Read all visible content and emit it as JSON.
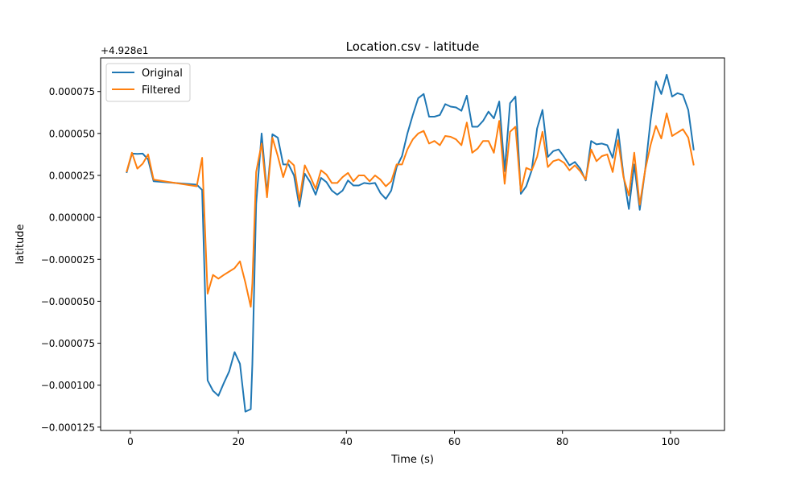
{
  "chart_data": {
    "type": "line",
    "title": "Location.csv - latitude",
    "xlabel": "Time (s)",
    "ylabel": "latitude",
    "offset_label": "+4.928e1",
    "xlim": [
      -5.5,
      110
    ],
    "ylim": [
      -0.000127,
      9.5e-05
    ],
    "xticks": [
      0,
      20,
      40,
      60,
      80,
      100
    ],
    "xtick_labels": [
      "0",
      "20",
      "40",
      "60",
      "80",
      "100"
    ],
    "yticks": [
      7.5e-05,
      5e-05,
      2.5e-05,
      0,
      -2.5e-05,
      -5e-05,
      -7.5e-05,
      -0.0001,
      -0.000125
    ],
    "ytick_labels": [
      "0.000075",
      "0.000050",
      "0.000025",
      "0.000000",
      "−0.000025",
      "−0.000050",
      "−0.000075",
      "−0.000100",
      "−0.000125"
    ],
    "grid": false,
    "legend_position": "upper-left",
    "series": [
      {
        "name": "Original",
        "color": "#1f77b4",
        "x": [
          -0.7,
          0.3,
          1.3,
          2.3,
          3.3,
          4.3,
          12.3,
          13.3,
          14.3,
          15.3,
          16.3,
          17.3,
          18.3,
          19.3,
          20.3,
          21.3,
          22.3,
          22.6,
          23.3,
          24.3,
          25.3,
          26.3,
          27.3,
          28.3,
          29.3,
          30.3,
          31.3,
          32.3,
          33.3,
          34.3,
          35.3,
          36.3,
          37.3,
          38.3,
          39.3,
          40.3,
          41.3,
          42.3,
          43.3,
          44.3,
          45.3,
          46.3,
          47.3,
          48.3,
          49.3,
          50.3,
          51.3,
          52.3,
          53.3,
          54.3,
          55.3,
          56.3,
          57.3,
          58.3,
          59.3,
          60.3,
          61.3,
          62.3,
          63.3,
          64.3,
          65.3,
          66.3,
          67.3,
          68.3,
          69.3,
          70.3,
          71.3,
          72.3,
          73.3,
          74.3,
          75.3,
          76.3,
          77.3,
          78.3,
          79.3,
          80.3,
          81.3,
          82.3,
          83.3,
          84.3,
          85.3,
          86.3,
          87.3,
          88.3,
          89.3,
          90.3,
          91.3,
          92.3,
          93.3,
          94.3,
          95.3,
          96.3,
          97.3,
          98.3,
          99.3,
          100.3,
          101.3,
          102.3,
          103.3,
          104.3
        ],
        "y": [
          2.65e-05,
          3.8e-05,
          3.78e-05,
          3.8e-05,
          3.45e-05,
          2.15e-05,
          1.95e-05,
          1.63e-05,
          -9.72e-05,
          -0.0001033,
          -0.0001063,
          -9.88e-05,
          -9.18e-05,
          -8.03e-05,
          -8.73e-05,
          -0.0001158,
          -0.0001143,
          -8.73e-05,
          8e-06,
          5e-05,
          1.4e-05,
          4.95e-05,
          4.75e-05,
          3.15e-05,
          3.15e-05,
          2.5e-05,
          6.5e-06,
          2.6e-05,
          2.1e-05,
          1.35e-05,
          2.35e-05,
          2.1e-05,
          1.6e-05,
          1.35e-05,
          1.6e-05,
          2.2e-05,
          1.9e-05,
          1.9e-05,
          2.05e-05,
          2e-05,
          2.05e-05,
          1.45e-05,
          1.1e-05,
          1.6e-05,
          3e-05,
          3.65e-05,
          5e-05,
          6.1e-05,
          7.1e-05,
          7.35e-05,
          6e-05,
          6e-05,
          6.1e-05,
          6.75e-05,
          6.6e-05,
          6.55e-05,
          6.35e-05,
          7.25e-05,
          5.4e-05,
          5.4e-05,
          5.75e-05,
          6.3e-05,
          5.9e-05,
          6.9e-05,
          2.75e-05,
          6.8e-05,
          7.2e-05,
          1.4e-05,
          1.85e-05,
          2.8e-05,
          5.3e-05,
          6.4e-05,
          3.6e-05,
          3.95e-05,
          4.05e-05,
          3.6e-05,
          3.1e-05,
          3.3e-05,
          2.9e-05,
          2.2e-05,
          4.55e-05,
          4.35e-05,
          4.4e-05,
          4.3e-05,
          3.55e-05,
          5.25e-05,
          2.5e-05,
          5e-06,
          3.15e-05,
          4.5e-06,
          2.8e-05,
          5.75e-05,
          8.1e-05,
          7.35e-05,
          8.5e-05,
          7.2e-05,
          7.4e-05,
          7.3e-05,
          6.4e-05,
          4e-05
        ]
      },
      {
        "name": "Filtered",
        "color": "#ff7f0e",
        "x": [
          -0.7,
          0.3,
          1.3,
          2.3,
          3.3,
          4.3,
          12.3,
          13.3,
          14.3,
          15.3,
          16.3,
          17.3,
          18.3,
          19.3,
          20.3,
          21.3,
          22.3,
          22.6,
          23.3,
          24.3,
          25.3,
          26.3,
          27.3,
          28.3,
          29.3,
          30.3,
          31.3,
          32.3,
          33.3,
          34.3,
          35.3,
          36.3,
          37.3,
          38.3,
          39.3,
          40.3,
          41.3,
          42.3,
          43.3,
          44.3,
          45.3,
          46.3,
          47.3,
          48.3,
          49.3,
          50.3,
          51.3,
          52.3,
          53.3,
          54.3,
          55.3,
          56.3,
          57.3,
          58.3,
          59.3,
          60.3,
          61.3,
          62.3,
          63.3,
          64.3,
          65.3,
          66.3,
          67.3,
          68.3,
          69.3,
          70.3,
          71.3,
          72.3,
          73.3,
          74.3,
          75.3,
          76.3,
          77.3,
          78.3,
          79.3,
          80.3,
          81.3,
          82.3,
          83.3,
          84.3,
          85.3,
          86.3,
          87.3,
          88.3,
          89.3,
          90.3,
          91.3,
          92.3,
          93.3,
          94.3,
          95.3,
          96.3,
          97.3,
          98.3,
          99.3,
          100.3,
          101.3,
          102.3,
          103.3,
          104.3
        ],
        "y": [
          2.7e-05,
          3.85e-05,
          2.9e-05,
          3.2e-05,
          3.75e-05,
          2.25e-05,
          1.85e-05,
          3.55e-05,
          -4.55e-05,
          -3.43e-05,
          -3.65e-05,
          -3.43e-05,
          -3.23e-05,
          -3.03e-05,
          -2.62e-05,
          -3.88e-05,
          -5.33e-05,
          -3.93e-05,
          2.7e-05,
          4.4e-05,
          1.2e-05,
          4.75e-05,
          3.65e-05,
          2.4e-05,
          3.4e-05,
          3.1e-05,
          1e-05,
          3.1e-05,
          2.45e-05,
          1.7e-05,
          2.8e-05,
          2.55e-05,
          2.05e-05,
          2.05e-05,
          2.4e-05,
          2.65e-05,
          2.15e-05,
          2.5e-05,
          2.5e-05,
          2.15e-05,
          2.5e-05,
          2.25e-05,
          1.85e-05,
          2.15e-05,
          3.15e-05,
          3.15e-05,
          4.05e-05,
          4.65e-05,
          5e-05,
          5.15e-05,
          4.4e-05,
          4.55e-05,
          4.3e-05,
          4.85e-05,
          4.8e-05,
          4.65e-05,
          4.3e-05,
          5.65e-05,
          3.85e-05,
          4.1e-05,
          4.55e-05,
          4.55e-05,
          3.85e-05,
          5.75e-05,
          2e-05,
          5.1e-05,
          5.4e-05,
          1.55e-05,
          2.95e-05,
          2.8e-05,
          3.6e-05,
          5.1e-05,
          3e-05,
          3.35e-05,
          3.45e-05,
          3.25e-05,
          2.8e-05,
          3.1e-05,
          2.75e-05,
          2.25e-05,
          4.05e-05,
          3.35e-05,
          3.65e-05,
          3.75e-05,
          2.7e-05,
          4.6e-05,
          2.4e-05,
          1.3e-05,
          3.85e-05,
          7.5e-06,
          2.8e-05,
          4.3e-05,
          5.45e-05,
          4.7e-05,
          6.2e-05,
          4.85e-05,
          5.05e-05,
          5.25e-05,
          4.75e-05,
          3.1e-05
        ]
      }
    ]
  }
}
